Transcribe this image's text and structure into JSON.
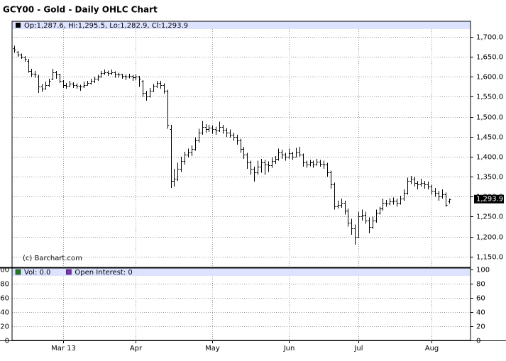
{
  "chart_data": [
    {
      "type": "ohlc",
      "title": "GCY00 - Gold - Daily OHLC Chart",
      "legend_text": "Op:1,287.6, Hi:1,295.5, Lo:1,282.9, Cl:1,293.9",
      "watermark": "(c) Barchart.com",
      "color": "#000000",
      "last_label": {
        "value": 1293.9,
        "label": "1,293.9"
      },
      "ylim": [
        1123,
        1739
      ],
      "yticks": [
        {
          "value": 1150,
          "label": "1,150.0"
        },
        {
          "value": 1200,
          "label": "1,200.0"
        },
        {
          "value": 1250,
          "label": "1,250.0"
        },
        {
          "value": 1300,
          "label": "1,300.0"
        },
        {
          "value": 1350,
          "label": "1,350.0"
        },
        {
          "value": 1400,
          "label": "1,400.0"
        },
        {
          "value": 1450,
          "label": "1,450.0"
        },
        {
          "value": 1500,
          "label": "1,500.0"
        },
        {
          "value": 1550,
          "label": "1,550.0"
        },
        {
          "value": 1600,
          "label": "1,600.0"
        },
        {
          "value": 1650,
          "label": "1,650.0"
        },
        {
          "value": 1700,
          "label": "1,700.0"
        }
      ],
      "xlim": [
        -0.6,
        131.2
      ],
      "xticks": [
        {
          "value": 14,
          "label": "Mar 13"
        },
        {
          "value": 35,
          "label": "Apr"
        },
        {
          "value": 57,
          "label": "May"
        },
        {
          "value": 79,
          "label": "Jun"
        },
        {
          "value": 99,
          "label": "Jul"
        },
        {
          "value": 120,
          "label": "Aug"
        }
      ],
      "grid": true,
      "values": [
        [
          1672,
          1678,
          1660,
          1668
        ],
        [
          1662,
          1664,
          1650,
          1655
        ],
        [
          1655,
          1658,
          1645,
          1650
        ],
        [
          1648,
          1652,
          1638,
          1645
        ],
        [
          1640,
          1645,
          1610,
          1615
        ],
        [
          1615,
          1620,
          1600,
          1608
        ],
        [
          1608,
          1615,
          1598,
          1605
        ],
        [
          1600,
          1605,
          1560,
          1575
        ],
        [
          1575,
          1582,
          1562,
          1570
        ],
        [
          1570,
          1588,
          1568,
          1580
        ],
        [
          1580,
          1595,
          1575,
          1590
        ],
        [
          1595,
          1620,
          1592,
          1612
        ],
        [
          1612,
          1615,
          1595,
          1605
        ],
        [
          1605,
          1608,
          1585,
          1590
        ],
        [
          1590,
          1592,
          1572,
          1580
        ],
        [
          1580,
          1585,
          1570,
          1578
        ],
        [
          1578,
          1590,
          1575,
          1582
        ],
        [
          1582,
          1586,
          1572,
          1580
        ],
        [
          1580,
          1584,
          1570,
          1578
        ],
        [
          1578,
          1580,
          1565,
          1575
        ],
        [
          1575,
          1588,
          1572,
          1580
        ],
        [
          1580,
          1590,
          1578,
          1585
        ],
        [
          1585,
          1595,
          1580,
          1590
        ],
        [
          1590,
          1600,
          1585,
          1595
        ],
        [
          1595,
          1605,
          1590,
          1600
        ],
        [
          1600,
          1615,
          1598,
          1610
        ],
        [
          1610,
          1618,
          1605,
          1612
        ],
        [
          1612,
          1616,
          1602,
          1610
        ],
        [
          1610,
          1618,
          1605,
          1612
        ],
        [
          1612,
          1614,
          1598,
          1605
        ],
        [
          1605,
          1610,
          1598,
          1605
        ],
        [
          1605,
          1608,
          1595,
          1602
        ],
        [
          1602,
          1606,
          1592,
          1600
        ],
        [
          1600,
          1608,
          1596,
          1602
        ],
        [
          1602,
          1605,
          1590,
          1598
        ],
        [
          1598,
          1606,
          1592,
          1600
        ],
        [
          1600,
          1602,
          1575,
          1595
        ],
        [
          1590,
          1592,
          1550,
          1560
        ],
        [
          1560,
          1565,
          1540,
          1550
        ],
        [
          1550,
          1572,
          1548,
          1565
        ],
        [
          1565,
          1582,
          1562,
          1578
        ],
        [
          1578,
          1590,
          1572,
          1585
        ],
        [
          1585,
          1590,
          1570,
          1580
        ],
        [
          1580,
          1584,
          1558,
          1565
        ],
        [
          1565,
          1568,
          1470,
          1480
        ],
        [
          1470,
          1480,
          1322,
          1340
        ],
        [
          1340,
          1370,
          1325,
          1345
        ],
        [
          1345,
          1385,
          1340,
          1370
        ],
        [
          1370,
          1400,
          1362,
          1390
        ],
        [
          1390,
          1412,
          1380,
          1405
        ],
        [
          1405,
          1420,
          1398,
          1410
        ],
        [
          1410,
          1428,
          1402,
          1420
        ],
        [
          1420,
          1448,
          1415,
          1440
        ],
        [
          1440,
          1470,
          1435,
          1460
        ],
        [
          1460,
          1490,
          1455,
          1475
        ],
        [
          1475,
          1482,
          1460,
          1470
        ],
        [
          1470,
          1480,
          1462,
          1472
        ],
        [
          1472,
          1478,
          1458,
          1470
        ],
        [
          1470,
          1475,
          1455,
          1465
        ],
        [
          1465,
          1488,
          1462,
          1475
        ],
        [
          1475,
          1480,
          1458,
          1468
        ],
        [
          1468,
          1472,
          1450,
          1460
        ],
        [
          1460,
          1468,
          1448,
          1455
        ],
        [
          1455,
          1460,
          1440,
          1450
        ],
        [
          1450,
          1455,
          1430,
          1440
        ],
        [
          1440,
          1445,
          1410,
          1420
        ],
        [
          1420,
          1425,
          1395,
          1405
        ],
        [
          1405,
          1410,
          1370,
          1385
        ],
        [
          1385,
          1390,
          1355,
          1370
        ],
        [
          1370,
          1375,
          1338,
          1360
        ],
        [
          1360,
          1390,
          1355,
          1375
        ],
        [
          1375,
          1395,
          1360,
          1385
        ],
        [
          1385,
          1392,
          1355,
          1380
        ],
        [
          1380,
          1388,
          1362,
          1378
        ],
        [
          1378,
          1398,
          1372,
          1390
        ],
        [
          1390,
          1402,
          1382,
          1395
        ],
        [
          1395,
          1420,
          1390,
          1410
        ],
        [
          1410,
          1418,
          1395,
          1405
        ],
        [
          1405,
          1410,
          1390,
          1400
        ],
        [
          1400,
          1420,
          1395,
          1408
        ],
        [
          1408,
          1412,
          1392,
          1400
        ],
        [
          1400,
          1422,
          1398,
          1410
        ],
        [
          1410,
          1425,
          1400,
          1405
        ],
        [
          1405,
          1408,
          1375,
          1385
        ],
        [
          1385,
          1390,
          1372,
          1380
        ],
        [
          1380,
          1392,
          1376,
          1385
        ],
        [
          1385,
          1390,
          1372,
          1380
        ],
        [
          1380,
          1395,
          1378,
          1388
        ],
        [
          1388,
          1392,
          1375,
          1382
        ],
        [
          1382,
          1390,
          1370,
          1380
        ],
        [
          1380,
          1385,
          1350,
          1360
        ],
        [
          1360,
          1365,
          1320,
          1330
        ],
        [
          1330,
          1335,
          1268,
          1275
        ],
        [
          1275,
          1290,
          1270,
          1280
        ],
        [
          1280,
          1295,
          1272,
          1285
        ],
        [
          1285,
          1290,
          1255,
          1265
        ],
        [
          1265,
          1270,
          1225,
          1235
        ],
        [
          1235,
          1245,
          1205,
          1220
        ],
        [
          1220,
          1230,
          1180,
          1200
        ],
        [
          1200,
          1262,
          1198,
          1250
        ],
        [
          1250,
          1268,
          1240,
          1255
        ],
        [
          1255,
          1262,
          1232,
          1240
        ],
        [
          1240,
          1248,
          1208,
          1225
        ],
        [
          1225,
          1250,
          1220,
          1240
        ],
        [
          1240,
          1268,
          1235,
          1260
        ],
        [
          1260,
          1275,
          1255,
          1270
        ],
        [
          1270,
          1295,
          1265,
          1285
        ],
        [
          1285,
          1292,
          1275,
          1282
        ],
        [
          1282,
          1296,
          1278,
          1288
        ],
        [
          1288,
          1298,
          1280,
          1290
        ],
        [
          1290,
          1295,
          1275,
          1285
        ],
        [
          1285,
          1302,
          1280,
          1295
        ],
        [
          1295,
          1318,
          1290,
          1310
        ],
        [
          1310,
          1348,
          1305,
          1340
        ],
        [
          1340,
          1352,
          1332,
          1345
        ],
        [
          1345,
          1350,
          1325,
          1335
        ],
        [
          1335,
          1340,
          1318,
          1330
        ],
        [
          1330,
          1345,
          1325,
          1335
        ],
        [
          1335,
          1340,
          1320,
          1330
        ],
        [
          1330,
          1338,
          1318,
          1325
        ],
        [
          1325,
          1330,
          1305,
          1315
        ],
        [
          1315,
          1322,
          1300,
          1310
        ],
        [
          1310,
          1315,
          1290,
          1300
        ],
        [
          1300,
          1318,
          1295,
          1305
        ],
        [
          1305,
          1310,
          1275,
          1280
        ],
        [
          1287.6,
          1295.5,
          1282.9,
          1293.9
        ]
      ]
    },
    {
      "type": "bar",
      "series": [
        {
          "name": "Vol: 0.0",
          "color": "#1f7a1f",
          "values": []
        },
        {
          "name": "Open Interest: 0",
          "color": "#7b2fbf",
          "values": []
        }
      ],
      "ylim": [
        0,
        101
      ],
      "yticks": [
        0,
        20,
        40,
        60,
        80,
        100
      ],
      "grid": true
    }
  ]
}
